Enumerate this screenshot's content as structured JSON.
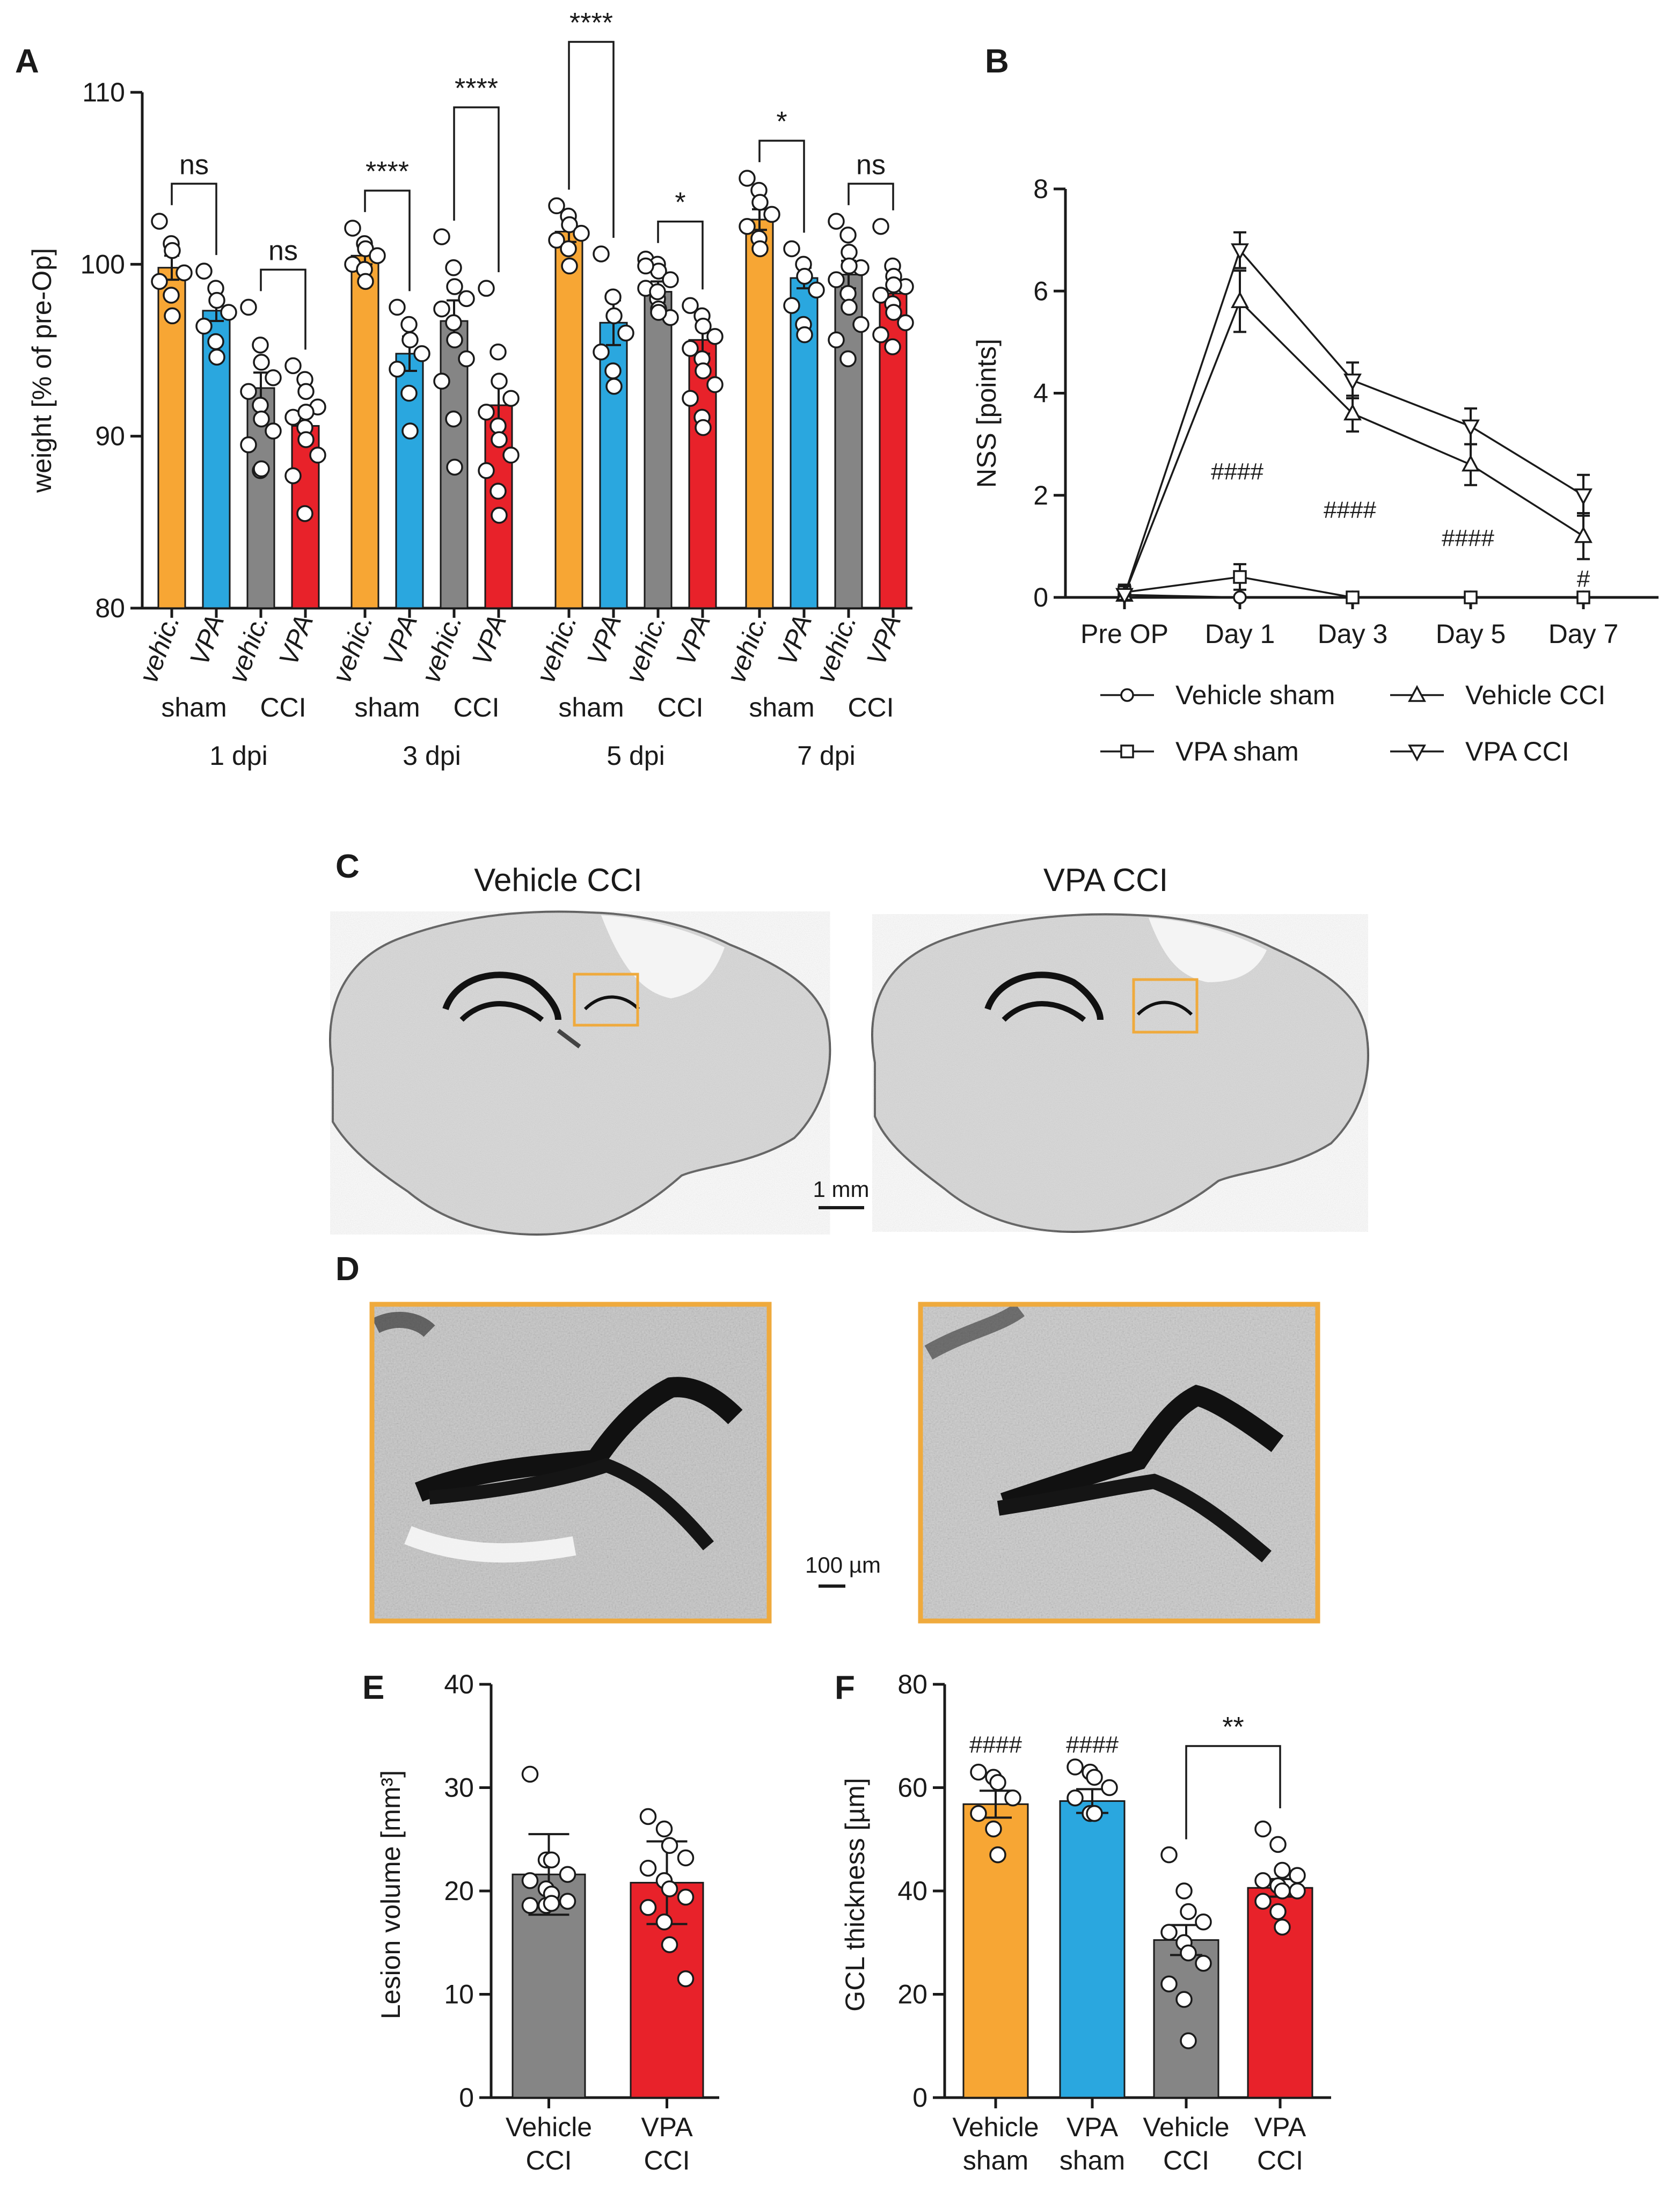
{
  "colors": {
    "orange": "#f7a634",
    "blue": "#2aa7df",
    "gray": "#858585",
    "red": "#e8222a",
    "box": "#efaa3d"
  },
  "panels": {
    "a": "A",
    "b": "B",
    "c": "C",
    "d": "D",
    "e": "E",
    "f": "F"
  },
  "chart_data": [
    {
      "id": "A",
      "type": "bar",
      "ylabel": "weight [% of pre-Op]",
      "ylim": [
        80,
        110
      ],
      "yticks": [
        80,
        90,
        100,
        110
      ],
      "bar_labels": [
        "vehic.",
        "VPA",
        "vehic.",
        "VPA"
      ],
      "group_labels": [
        "sham",
        "CCI"
      ],
      "series_colors": [
        "orange",
        "blue",
        "gray",
        "red"
      ],
      "timepoints": [
        {
          "label": "1 dpi",
          "values": [
            99.8,
            97.3,
            92.8,
            90.6
          ],
          "errors": [
            0.7,
            0.6,
            0.9,
            0.7
          ],
          "stats": [
            "ns",
            "ns"
          ],
          "points": [
            [
              102.5,
              101.2,
              100.8,
              99.5,
              99.0,
              98.2,
              97.0
            ],
            [
              99.6,
              98.6,
              97.9,
              97.2,
              96.4,
              95.5,
              94.6
            ],
            [
              97.5,
              95.3,
              94.3,
              93.4,
              92.6,
              91.8,
              91.0,
              90.3,
              89.5,
              88.0,
              88.1
            ],
            [
              94.1,
              93.3,
              92.6,
              91.7,
              91.1,
              90.5,
              89.8,
              88.9,
              87.7,
              85.5,
              91.4
            ]
          ]
        },
        {
          "label": "3 dpi",
          "values": [
            100.5,
            94.8,
            96.7,
            91.8
          ],
          "errors": [
            0.5,
            1.0,
            1.2,
            1.3
          ],
          "stats": [
            "****",
            "****"
          ],
          "points": [
            [
              102.1,
              101.2,
              100.9,
              100.5,
              100.0,
              99.7,
              99.0
            ],
            [
              97.5,
              96.5,
              95.6,
              94.8,
              93.9,
              92.5,
              90.3
            ],
            [
              101.6,
              99.8,
              98.7,
              98.0,
              97.4,
              96.6,
              95.6,
              94.5,
              93.2,
              91.0,
              88.2
            ],
            [
              98.6,
              94.9,
              93.2,
              92.2,
              91.4,
              90.6,
              89.8,
              88.9,
              88.0,
              86.8,
              85.4
            ]
          ]
        },
        {
          "label": "5 dpi",
          "values": [
            101.9,
            96.6,
            98.4,
            95.6
          ],
          "errors": [
            0.6,
            1.3,
            0.6,
            0.8
          ],
          "stats": [
            "****",
            "*"
          ],
          "points": [
            [
              103.4,
              102.8,
              102.3,
              101.8,
              101.4,
              100.9,
              99.9
            ],
            [
              100.6,
              98.1,
              97.0,
              96.0,
              94.9,
              93.8,
              92.9
            ],
            [
              100.3,
              100.0,
              99.6,
              99.1,
              98.6,
              98.0,
              97.4,
              96.9,
              99.9,
              98.4,
              97.2
            ],
            [
              97.6,
              97.0,
              96.4,
              95.8,
              95.1,
              94.5,
              93.8,
              93.0,
              92.2,
              91.1,
              90.5
            ]
          ]
        },
        {
          "label": "7 dpi",
          "values": [
            102.6,
            99.2,
            99.4,
            98.3
          ],
          "errors": [
            0.6,
            0.6,
            0.8,
            0.6
          ],
          "stats": [
            "*",
            "ns"
          ],
          "points": [
            [
              105.0,
              104.3,
              103.6,
              102.9,
              102.2,
              101.5,
              100.9
            ],
            [
              100.9,
              100.0,
              99.3,
              98.5,
              97.6,
              96.5,
              95.9
            ],
            [
              102.5,
              101.7,
              100.7,
              99.8,
              99.1,
              98.3,
              97.5,
              96.5,
              95.6,
              94.5,
              99.9
            ],
            [
              102.2,
              99.9,
              99.3,
              98.7,
              98.2,
              97.7,
              97.2,
              96.6,
              95.9,
              95.2,
              98.8
            ]
          ]
        }
      ]
    },
    {
      "id": "B",
      "type": "line",
      "ylabel": "NSS [points]",
      "ylim": [
        0,
        8
      ],
      "yticks": [
        0,
        2,
        4,
        6,
        8
      ],
      "categories": [
        "Pre OP",
        "Day 1",
        "Day 3",
        "Day 5",
        "Day 7"
      ],
      "series": [
        {
          "name": "Vehicle sham",
          "marker": "circle",
          "values": [
            0.05,
            0,
            0,
            0,
            0
          ],
          "errors": [
            0.1,
            0,
            0,
            0,
            0
          ]
        },
        {
          "name": "VPA sham",
          "marker": "square",
          "values": [
            0.1,
            0.4,
            0,
            0,
            0
          ],
          "errors": [
            0.15,
            0.25,
            0,
            0,
            0
          ]
        },
        {
          "name": "Vehicle CCI",
          "marker": "triangle-up",
          "values": [
            0.05,
            5.8,
            3.6,
            2.6,
            1.2
          ],
          "errors": [
            0.1,
            0.6,
            0.35,
            0.4,
            0.45
          ]
        },
        {
          "name": "VPA CCI",
          "marker": "triangle-down",
          "values": [
            0.05,
            6.8,
            4.25,
            3.35,
            2.0
          ],
          "errors": [
            0.1,
            0.35,
            0.35,
            0.35,
            0.4
          ]
        }
      ],
      "annotations": [
        {
          "text": "####",
          "x": 1,
          "y": 2.5
        },
        {
          "text": "####",
          "x": 2,
          "y": 1.75
        },
        {
          "text": "####",
          "x": 3,
          "y": 1.2
        },
        {
          "text": "#",
          "x": 4,
          "y": 0.4
        }
      ]
    },
    {
      "id": "E",
      "type": "bar",
      "ylabel": "Lesion volume [mm³]",
      "ylim": [
        0,
        40
      ],
      "yticks": [
        0,
        10,
        20,
        30,
        40
      ],
      "categories": [
        "Vehicle\nCCI",
        "VPA\nCCI"
      ],
      "series_colors": [
        "gray",
        "red"
      ],
      "values": [
        21.6,
        20.8
      ],
      "errors": [
        3.9,
        4.0
      ],
      "points": [
        [
          31.3,
          23.0,
          23.0,
          21.6,
          21.0,
          20.2,
          19.7,
          19.0,
          18.6,
          18.6,
          18.8
        ],
        [
          27.2,
          26.0,
          24.4,
          23.2,
          22.2,
          21.0,
          20.2,
          19.4,
          18.4,
          17.0,
          14.8,
          11.5
        ]
      ]
    },
    {
      "id": "F",
      "type": "bar",
      "ylabel": "GCL thickness [µm]",
      "ylim": [
        0,
        80
      ],
      "yticks": [
        0,
        20,
        40,
        60,
        80
      ],
      "categories": [
        "Vehicle\nsham",
        "VPA\nsham",
        "Vehicle\nCCI",
        "VPA\nCCI"
      ],
      "series_colors": [
        "orange",
        "blue",
        "gray",
        "red"
      ],
      "values": [
        56.8,
        57.4,
        30.5,
        40.6
      ],
      "errors": [
        2.6,
        2.3,
        2.9,
        1.7
      ],
      "marks": [
        "####",
        "####",
        "",
        ""
      ],
      "stat": "**",
      "points": [
        [
          63,
          62,
          61,
          58,
          55,
          52,
          47
        ],
        [
          64,
          63,
          62,
          60,
          58,
          55,
          55
        ],
        [
          47,
          40,
          36,
          34,
          32,
          30,
          28,
          26,
          22,
          19,
          11
        ],
        [
          52,
          49,
          44,
          43,
          42,
          41,
          40,
          40,
          38,
          36,
          33
        ]
      ]
    }
  ],
  "panel_c": {
    "left_title": "Vehicle CCI",
    "right_title": "VPA CCI",
    "scale": "1 mm"
  },
  "panel_d": {
    "scale": "100 µm"
  }
}
